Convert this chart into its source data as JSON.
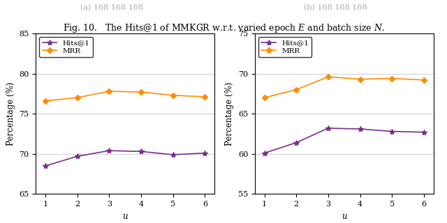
{
  "x": [
    1,
    2,
    3,
    4,
    5,
    6
  ],
  "left": {
    "hits1": [
      68.5,
      69.7,
      70.4,
      70.3,
      69.9,
      70.1
    ],
    "mrr": [
      76.6,
      77.0,
      77.8,
      77.7,
      77.3,
      77.1
    ],
    "ylim": [
      65,
      85
    ],
    "yticks": [
      65,
      70,
      75,
      80,
      85
    ]
  },
  "right": {
    "hits1": [
      60.1,
      61.4,
      63.2,
      63.1,
      62.8,
      62.7
    ],
    "mrr": [
      67.0,
      68.0,
      69.6,
      69.3,
      69.4,
      69.2
    ],
    "ylim": [
      55,
      75
    ],
    "yticks": [
      55,
      60,
      65,
      70,
      75
    ]
  },
  "xlabel": "u",
  "ylabel": "Percentage (%)",
  "hits1_color": "#7B2D8B",
  "mrr_color": "#FF8C00",
  "hits1_label": "Hits@1",
  "mrr_label": "MRR",
  "fig_title": "Fig. 10.   The Hits@1 of MMKGR w.r.t. varied epoch $E$ and batch size $N$.",
  "top_left_label": "(a) 168 168 168",
  "top_right_label": "(b) 168 168 168",
  "title_fontsize": 9,
  "axis_fontsize": 8.5,
  "legend_fontsize": 7.5,
  "tick_fontsize": 8
}
